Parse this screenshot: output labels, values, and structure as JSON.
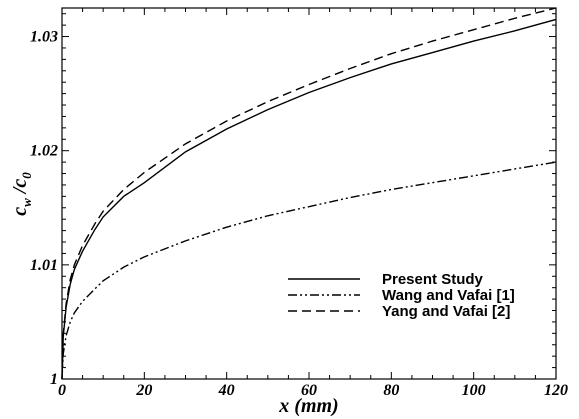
{
  "chart_data": {
    "type": "line",
    "title": "",
    "xlabel": "x (mm)",
    "ylabel": "c_w / c_0",
    "xlim": [
      0,
      120
    ],
    "ylim": [
      1.0,
      1.0325
    ],
    "xticks": [
      0,
      20,
      40,
      60,
      80,
      100,
      120
    ],
    "xtick_labels": [
      "0",
      "20",
      "40",
      "60",
      "80",
      "100",
      "120"
    ],
    "yticks": [
      1.0,
      1.01,
      1.02,
      1.03
    ],
    "ytick_labels": [
      "1",
      "1.01",
      "1.02",
      "1.03"
    ],
    "grid": false,
    "legend_position": "bottom-right",
    "series": [
      {
        "name": "Present Study",
        "style": "solid",
        "color": "#000000",
        "x": [
          0,
          0.3,
          1,
          2,
          3,
          5,
          8,
          10,
          15,
          20,
          30,
          40,
          50,
          60,
          70,
          80,
          90,
          100,
          110,
          120
        ],
        "y": [
          1.0,
          1.0037,
          1.0063,
          1.0083,
          1.0096,
          1.0112,
          1.0131,
          1.0142,
          1.016,
          1.0172,
          1.0199,
          1.0219,
          1.0236,
          1.0251,
          1.0264,
          1.0276,
          1.0286,
          1.0296,
          1.0305,
          1.0315
        ]
      },
      {
        "name": "Wang and Vafai [1]",
        "style": "dash-dot-dot",
        "color": "#000000",
        "x": [
          0,
          0.3,
          1,
          2,
          3,
          5,
          8,
          10,
          15,
          20,
          30,
          40,
          50,
          60,
          70,
          80,
          90,
          100,
          110,
          120
        ],
        "y": [
          1.0,
          1.0022,
          1.0038,
          1.005,
          1.0058,
          1.0068,
          1.0079,
          1.0086,
          1.0098,
          1.0107,
          1.0121,
          1.0133,
          1.0143,
          1.0151,
          1.0159,
          1.0166,
          1.0172,
          1.0178,
          1.0184,
          1.019
        ]
      },
      {
        "name": "Yang and Vafai [2]",
        "style": "dashed",
        "color": "#000000",
        "x": [
          0,
          0.3,
          1,
          2,
          3,
          5,
          8,
          10,
          15,
          20,
          30,
          40,
          50,
          60,
          70,
          80,
          90,
          100,
          110,
          120
        ],
        "y": [
          1.0,
          1.0039,
          1.0066,
          1.0087,
          1.01,
          1.0117,
          1.0136,
          1.0147,
          1.0166,
          1.0181,
          1.0206,
          1.0226,
          1.0243,
          1.0258,
          1.0272,
          1.0285,
          1.0296,
          1.0306,
          1.0316,
          1.0325
        ]
      }
    ]
  }
}
